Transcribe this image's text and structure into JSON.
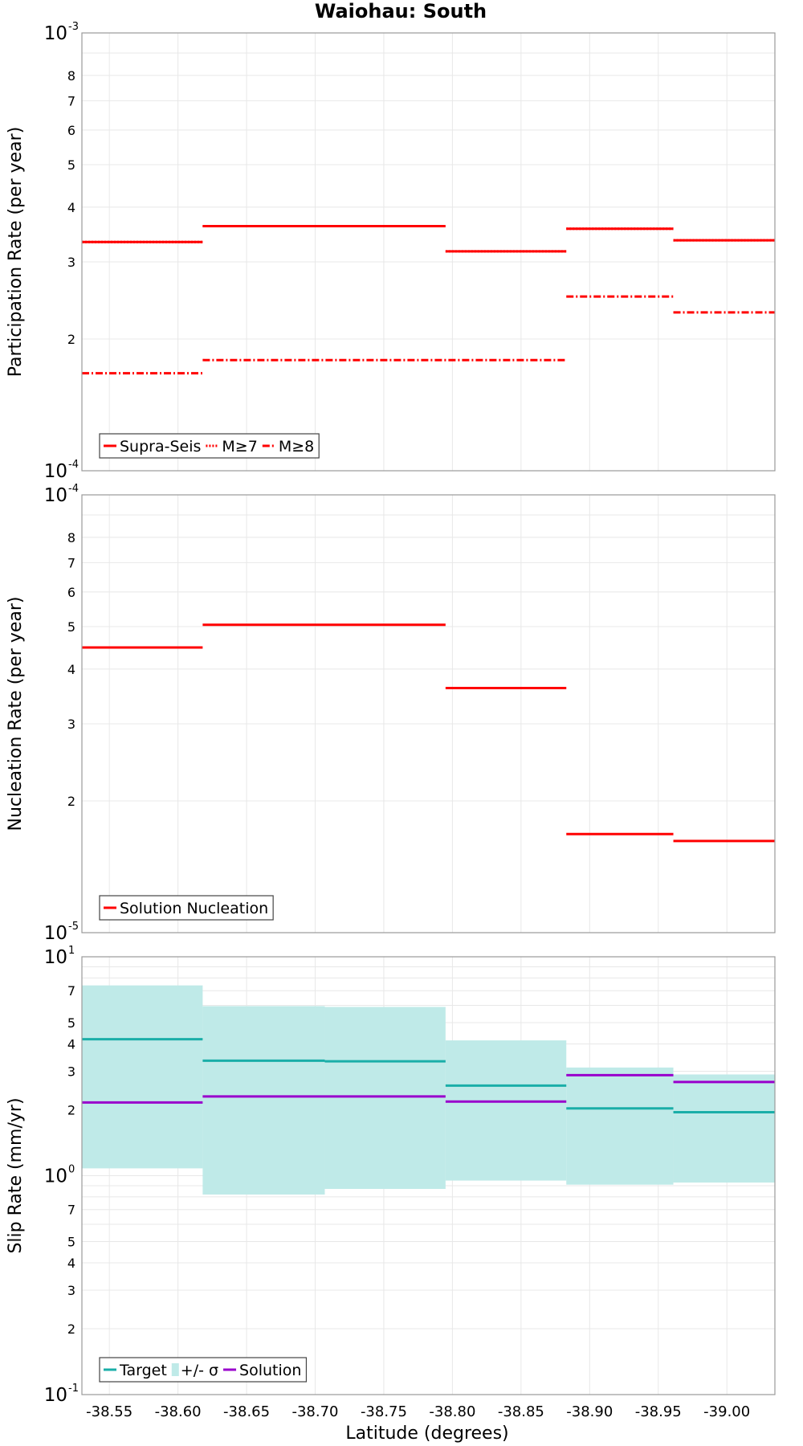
{
  "title": "Waiohau: South",
  "xlabel": "Latitude (degrees)",
  "colors": {
    "red": "#ff0000",
    "target": "#1aaea8",
    "band": "#bfeae8",
    "solution": "#9900cc"
  },
  "chart_data": [
    {
      "type": "line",
      "ylabel": "Participation Rate (per year)",
      "scale": "log",
      "ylim": [
        0.0001,
        0.001
      ],
      "ytick_major": [
        {
          "base": "10",
          "exp": "-4"
        },
        {
          "base": "10",
          "exp": "-3"
        }
      ],
      "ytick_minor": [
        "2",
        "3",
        "4",
        "5",
        "6",
        "7",
        "8"
      ],
      "xticks": [
        "-38.55",
        "-38.60",
        "-38.65",
        "-38.70",
        "-38.75",
        "-38.80",
        "-38.85",
        "-38.90",
        "-38.95",
        "-39.00"
      ],
      "xlim": [
        -38.53,
        -39.035
      ],
      "grid": true,
      "legend_position": "bottom-left",
      "series": [
        {
          "name": "Supra-Seis",
          "style": "solid",
          "segments": [
            [
              -38.53,
              -38.618,
              0.000333
            ],
            [
              -38.618,
              -38.795,
              0.000362
            ],
            [
              -38.795,
              -38.883,
              0.000317
            ],
            [
              -38.883,
              -38.961,
              0.000357
            ],
            [
              -38.961,
              -39.035,
              0.000336
            ]
          ]
        },
        {
          "name": "M≥7",
          "style": "dotted",
          "segments": [
            [
              -38.53,
              -38.618,
              0.000333
            ],
            [
              -38.618,
              -38.795,
              0.000362
            ],
            [
              -38.795,
              -38.883,
              0.000317
            ],
            [
              -38.883,
              -38.961,
              0.000357
            ],
            [
              -38.961,
              -39.035,
              0.000336
            ]
          ]
        },
        {
          "name": "M≥8",
          "style": "dashdot",
          "segments": [
            [
              -38.53,
              -38.618,
              0.000167
            ],
            [
              -38.618,
              -38.883,
              0.000179
            ],
            [
              -38.883,
              -38.961,
              0.00025
            ],
            [
              -38.961,
              -39.035,
              0.00023
            ]
          ]
        }
      ]
    },
    {
      "type": "line",
      "ylabel": "Nucleation Rate (per year)",
      "scale": "log",
      "ylim": [
        1e-05,
        0.0001
      ],
      "ytick_major": [
        {
          "base": "10",
          "exp": "-5"
        },
        {
          "base": "10",
          "exp": "-4"
        }
      ],
      "ytick_minor": [
        "2",
        "3",
        "4",
        "5",
        "6",
        "7",
        "8"
      ],
      "grid": true,
      "legend_position": "bottom-left",
      "series": [
        {
          "name": "Solution Nucleation",
          "style": "solid",
          "segments": [
            [
              -38.53,
              -38.618,
              4.48e-05
            ],
            [
              -38.618,
              -38.795,
              5.05e-05
            ],
            [
              -38.795,
              -38.883,
              3.62e-05
            ],
            [
              -38.883,
              -38.961,
              1.68e-05
            ],
            [
              -38.961,
              -39.035,
              1.62e-05
            ]
          ]
        }
      ]
    },
    {
      "type": "line",
      "ylabel": "Slip Rate (mm/yr)",
      "scale": "log",
      "ylim": [
        0.1,
        10
      ],
      "ytick_major": [
        {
          "base": "10",
          "exp": "-1"
        },
        {
          "base": "10",
          "exp": "0"
        },
        {
          "base": "10",
          "exp": "1"
        }
      ],
      "ytick_minor_per_decade": [
        "2",
        "3",
        "4",
        "5",
        "7"
      ],
      "grid": true,
      "legend_position": "bottom-left",
      "series": [
        {
          "name": "Target",
          "style": "solid",
          "segments": [
            [
              -38.53,
              -38.618,
              4.2
            ],
            [
              -38.618,
              -38.707,
              3.35
            ],
            [
              -38.707,
              -38.795,
              3.33
            ],
            [
              -38.795,
              -38.883,
              2.58
            ],
            [
              -38.883,
              -38.961,
              2.03
            ],
            [
              -38.961,
              -39.035,
              1.95
            ]
          ]
        },
        {
          "name": "+/- σ",
          "style": "band",
          "segments": [
            [
              -38.53,
              -38.618,
              1.08,
              7.4
            ],
            [
              -38.618,
              -38.707,
              0.82,
              5.95
            ],
            [
              -38.707,
              -38.795,
              0.87,
              5.9
            ],
            [
              -38.795,
              -38.883,
              0.95,
              4.15
            ],
            [
              -38.883,
              -38.961,
              0.91,
              3.12
            ],
            [
              -38.961,
              -39.035,
              0.93,
              2.9
            ]
          ]
        },
        {
          "name": "Solution",
          "style": "solid",
          "segments": [
            [
              -38.53,
              -38.618,
              2.16
            ],
            [
              -38.618,
              -38.795,
              2.3
            ],
            [
              -38.795,
              -38.883,
              2.18
            ],
            [
              -38.883,
              -38.961,
              2.88
            ],
            [
              -38.961,
              -39.035,
              2.68
            ]
          ]
        }
      ]
    }
  ]
}
